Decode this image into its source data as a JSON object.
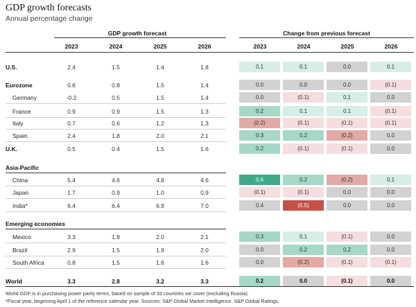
{
  "title": "GDP growth forecasts",
  "subtitle": "Annual percentage change",
  "group_left": "GDP growth forecast",
  "group_right": "Change from previous forecast",
  "years": [
    "2023",
    "2024",
    "2025",
    "2026"
  ],
  "colors": {
    "light_green": "#d6eee7",
    "mid_green": "#a6d8c7",
    "dark_green": "#3eaa8a",
    "gray": "#d2d2d2",
    "light_pink": "#f5dde0",
    "mid_pink": "#e3aaa5",
    "dark_red": "#c4504a"
  },
  "rows": [
    {
      "label": "U.S.",
      "bold": true,
      "indent": false,
      "values": [
        "2.4",
        "1.5",
        "1.4",
        "1.8"
      ],
      "changes": [
        "0.1",
        "0.1",
        "0.0",
        "0.1"
      ],
      "colors": [
        "light_green",
        "light_green",
        "gray",
        "light_green"
      ]
    },
    {
      "label": "Eurozone",
      "bold": true,
      "indent": false,
      "values": [
        "0.6",
        "0.8",
        "1.5",
        "1.4"
      ],
      "changes": [
        "0.0",
        "0.0",
        "0.0",
        "(0.1)"
      ],
      "colors": [
        "gray",
        "gray",
        "gray",
        "light_pink"
      ]
    },
    {
      "label": "Germany",
      "bold": false,
      "indent": true,
      "values": [
        "-0.2",
        "0.5",
        "1.5",
        "1.4"
      ],
      "changes": [
        "0.0",
        "(0.1)",
        "0.1",
        "0.0"
      ],
      "colors": [
        "gray",
        "light_pink",
        "light_green",
        "gray"
      ]
    },
    {
      "label": "France",
      "bold": false,
      "indent": true,
      "values": [
        "0.9",
        "0.9",
        "1.5",
        "1.3"
      ],
      "changes": [
        "0.2",
        "0.1",
        "0.1",
        "(0.1)"
      ],
      "colors": [
        "mid_green",
        "light_green",
        "light_green",
        "light_pink"
      ]
    },
    {
      "label": "Italy",
      "bold": false,
      "indent": true,
      "values": [
        "0.7",
        "0.6",
        "1.2",
        "1.3"
      ],
      "changes": [
        "(0.2)",
        "(0.1)",
        "(0.1)",
        "(0.1)"
      ],
      "colors": [
        "mid_pink",
        "light_pink",
        "light_pink",
        "light_pink"
      ]
    },
    {
      "label": "Spain",
      "bold": false,
      "indent": true,
      "values": [
        "2.4",
        "1.8",
        "2.0",
        "2.1"
      ],
      "changes": [
        "0.3",
        "0.2",
        "(0.2)",
        "0.0"
      ],
      "colors": [
        "mid_green",
        "mid_green",
        "mid_pink",
        "gray"
      ]
    },
    {
      "label": "U.K.",
      "bold": true,
      "indent": false,
      "values": [
        "0.5",
        "0.4",
        "1.5",
        "1.6"
      ],
      "changes": [
        "0.2",
        "(0.1)",
        "(0.1)",
        "0.0"
      ],
      "colors": [
        "mid_green",
        "light_pink",
        "light_pink",
        "gray"
      ]
    },
    {
      "label": "Asia-Pacific",
      "bold": true,
      "indent": false,
      "heading": true
    },
    {
      "label": "China",
      "bold": false,
      "indent": true,
      "values": [
        "5.4",
        "4.6",
        "4.8",
        "4.6"
      ],
      "changes": [
        "0.6",
        "0.2",
        "(0.2)",
        "0.1"
      ],
      "colors": [
        "dark_green",
        "mid_green",
        "mid_pink",
        "light_green"
      ]
    },
    {
      "label": "Japan",
      "bold": false,
      "indent": true,
      "values": [
        "1.7",
        "0.9",
        "1.0",
        "0.9"
      ],
      "changes": [
        "(0.1)",
        "(0.1)",
        "0.0",
        "0.0"
      ],
      "colors": [
        "light_pink",
        "light_pink",
        "gray",
        "gray"
      ]
    },
    {
      "label": "India*",
      "bold": false,
      "indent": true,
      "values": [
        "6.4",
        "6.4",
        "6.9",
        "7.0"
      ],
      "changes": [
        "0.4",
        "(0.5)",
        "0.0",
        "0.0"
      ],
      "colors": [
        "gray",
        "dark_red",
        "gray",
        "gray"
      ]
    },
    {
      "label": "Emerging economies",
      "bold": true,
      "indent": false,
      "heading": true
    },
    {
      "label": "Mexico",
      "bold": false,
      "indent": true,
      "values": [
        "3.3",
        "1.8",
        "2.0",
        "2.1"
      ],
      "changes": [
        "0.3",
        "0.1",
        "(0.1)",
        "0.0"
      ],
      "colors": [
        "mid_green",
        "light_green",
        "light_pink",
        "gray"
      ]
    },
    {
      "label": "Brazil",
      "bold": false,
      "indent": true,
      "values": [
        "2.9",
        "1.5",
        "1.9",
        "2.0"
      ],
      "changes": [
        "0.0",
        "0.2",
        "0.2",
        "0.0"
      ],
      "colors": [
        "gray",
        "mid_green",
        "mid_green",
        "gray"
      ]
    },
    {
      "label": "South Africa",
      "bold": false,
      "indent": true,
      "values": [
        "0.8",
        "1.5",
        "1.6",
        "1.6"
      ],
      "changes": [
        "0.0",
        "(0.2)",
        "(0.1)",
        "(0.1)"
      ],
      "colors": [
        "gray",
        "mid_pink",
        "light_pink",
        "light_pink"
      ]
    },
    {
      "label": "World",
      "bold": true,
      "indent": false,
      "values": [
        "3.3",
        "2.8",
        "3.2",
        "3.3"
      ],
      "changes": [
        "0.2",
        "0.0",
        "(0.1)",
        "0.0"
      ],
      "colors": [
        "mid_green",
        "gray",
        "light_pink",
        "gray"
      ],
      "bold_values": true
    }
  ],
  "footnotes": [
    "World GDP is in purchasing power parity terms, based on sample of 33 countries we cover (excluding Russia).",
    "*Fiscal year, beginning April 1 of the reference calendar year. Sources: S&P Global Market Intelligence. S&P Global Ratings."
  ]
}
